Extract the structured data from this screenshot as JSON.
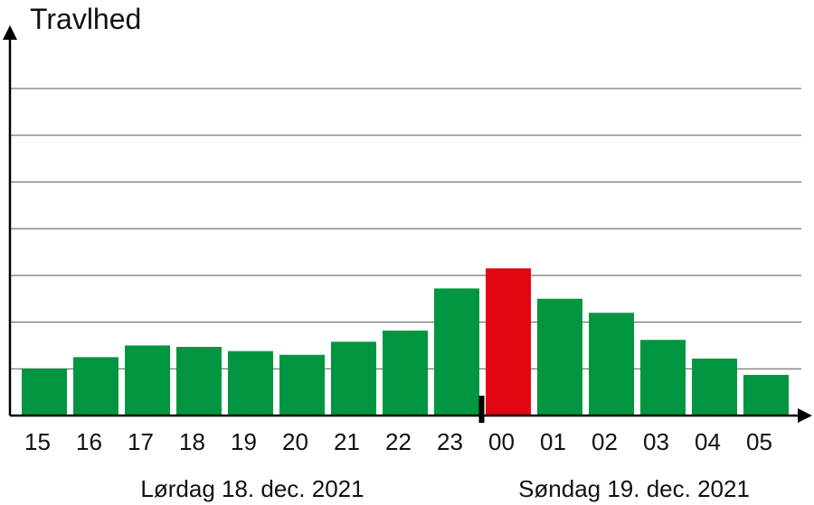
{
  "chart_data": {
    "type": "bar",
    "ylabel": "Travlhed",
    "categories": [
      "15",
      "16",
      "17",
      "18",
      "19",
      "20",
      "21",
      "22",
      "23",
      "00",
      "01",
      "02",
      "03",
      "04",
      "05"
    ],
    "values": [
      1.0,
      1.25,
      1.5,
      1.47,
      1.38,
      1.3,
      1.58,
      1.82,
      2.72,
      3.15,
      2.5,
      2.2,
      1.62,
      1.22,
      0.87
    ],
    "highlight_category": "00",
    "ylim": [
      0,
      7
    ],
    "y_gridlines": [
      1,
      2,
      3,
      4,
      5,
      6,
      7
    ],
    "grid": "horizontal",
    "day_labels": [
      "Lørdag 18. dec. 2021",
      "Søndag 19. dec. 2021"
    ],
    "colors": {
      "bar": "#009640",
      "highlight": "#e30613",
      "axis": "#000000",
      "grid": "#555555"
    }
  }
}
